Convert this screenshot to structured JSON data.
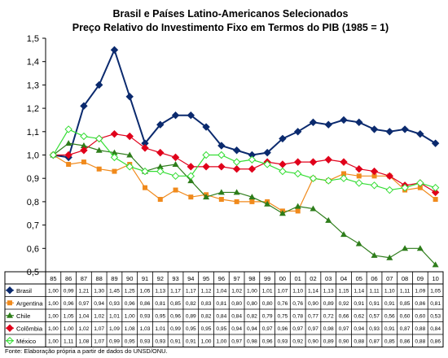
{
  "chart_data": {
    "type": "line",
    "title": "Brasil e Países Latino-Americanos Selecionados",
    "subtitle": "Preço Relativo do Investimento Fixo em Termos do PIB (1985 = 1)",
    "xlabel": "",
    "ylabel": "",
    "ylim": [
      0.5,
      1.5
    ],
    "yticks": [
      "0,5",
      "0,6",
      "0,7",
      "0,8",
      "0,9",
      "1,0",
      "1,1",
      "1,2",
      "1,3",
      "1,4",
      "1,5"
    ],
    "grid": false,
    "categories": [
      "85",
      "86",
      "87",
      "88",
      "89",
      "90",
      "91",
      "92",
      "93",
      "94",
      "95",
      "96",
      "97",
      "98",
      "99",
      "00",
      "01",
      "02",
      "03",
      "04",
      "05",
      "06",
      "07",
      "08",
      "09",
      "10"
    ],
    "series": [
      {
        "name": "Brasil",
        "color": "#0b2a6e",
        "marker": "diamond",
        "values": [
          1.0,
          0.99,
          1.21,
          1.3,
          1.45,
          1.25,
          1.05,
          1.13,
          1.17,
          1.17,
          1.12,
          1.04,
          1.02,
          1.0,
          1.01,
          1.07,
          1.1,
          1.14,
          1.13,
          1.15,
          1.14,
          1.11,
          1.1,
          1.11,
          1.09,
          1.05
        ],
        "labels": [
          "1,00",
          "0,99",
          "1,21",
          "1,30",
          "1,45",
          "1,25",
          "1,05",
          "1,13",
          "1,17",
          "1,17",
          "1,12",
          "1,04",
          "1,02",
          "1,00",
          "1,01",
          "1,07",
          "1,10",
          "1,14",
          "1,13",
          "1,15",
          "1,14",
          "1,11",
          "1,10",
          "1,11",
          "1,09",
          "1,05"
        ]
      },
      {
        "name": "Argentina",
        "color": "#f08a1c",
        "marker": "square",
        "values": [
          1.0,
          0.96,
          0.97,
          0.94,
          0.93,
          0.96,
          0.86,
          0.81,
          0.85,
          0.82,
          0.83,
          0.81,
          0.8,
          0.8,
          0.8,
          0.76,
          0.76,
          0.9,
          0.89,
          0.92,
          0.91,
          0.91,
          0.91,
          0.85,
          0.86,
          0.81
        ],
        "labels": [
          "1,00",
          "0,96",
          "0,97",
          "0,94",
          "0,93",
          "0,96",
          "0,86",
          "0,81",
          "0,85",
          "0,82",
          "0,83",
          "0,81",
          "0,80",
          "0,80",
          "0,80",
          "0,76",
          "0,76",
          "0,90",
          "0,89",
          "0,92",
          "0,91",
          "0,91",
          "0,91",
          "0,85",
          "0,86",
          "0,81"
        ]
      },
      {
        "name": "Chile",
        "color": "#2e7d1b",
        "marker": "triangle",
        "values": [
          1.0,
          1.05,
          1.04,
          1.02,
          1.01,
          1.0,
          0.93,
          0.95,
          0.96,
          0.89,
          0.82,
          0.84,
          0.84,
          0.82,
          0.79,
          0.75,
          0.78,
          0.77,
          0.72,
          0.66,
          0.62,
          0.57,
          0.56,
          0.6,
          0.6,
          0.53
        ],
        "labels": [
          "1,00",
          "1,05",
          "1,04",
          "1,02",
          "1,01",
          "1,00",
          "0,93",
          "0,95",
          "0,96",
          "0,89",
          "0,82",
          "0,84",
          "0,84",
          "0,82",
          "0,79",
          "0,75",
          "0,78",
          "0,77",
          "0,72",
          "0,66",
          "0,62",
          "0,57",
          "0,56",
          "0,60",
          "0,60",
          "0,53"
        ]
      },
      {
        "name": "Colômbia",
        "color": "#e0001b",
        "marker": "diamond",
        "values": [
          1.0,
          1.0,
          1.02,
          1.07,
          1.09,
          1.08,
          1.03,
          1.01,
          0.99,
          0.95,
          0.95,
          0.95,
          0.94,
          0.94,
          0.97,
          0.96,
          0.97,
          0.97,
          0.98,
          0.97,
          0.94,
          0.93,
          0.91,
          0.87,
          0.88,
          0.84
        ],
        "labels": [
          "1,00",
          "1,00",
          "1,02",
          "1,07",
          "1,09",
          "1,08",
          "1,03",
          "1,01",
          "0,99",
          "0,95",
          "0,95",
          "0,95",
          "0,94",
          "0,94",
          "0,97",
          "0,96",
          "0,97",
          "0,97",
          "0,98",
          "0,97",
          "0,94",
          "0,93",
          "0,91",
          "0,87",
          "0,88",
          "0,84"
        ]
      },
      {
        "name": "México",
        "color": "#33dd33",
        "marker": "diamond-open",
        "values": [
          1.0,
          1.11,
          1.08,
          1.07,
          0.99,
          0.95,
          0.93,
          0.93,
          0.91,
          0.91,
          1.0,
          1.0,
          0.97,
          0.98,
          0.96,
          0.93,
          0.92,
          0.9,
          0.89,
          0.9,
          0.88,
          0.87,
          0.85,
          0.86,
          0.88,
          0.86
        ],
        "labels": [
          "1,00",
          "1,11",
          "1,08",
          "1,07",
          "0,99",
          "0,95",
          "0,93",
          "0,93",
          "0,91",
          "0,91",
          "1,00",
          "1,00",
          "0,97",
          "0,98",
          "0,96",
          "0,93",
          "0,92",
          "0,90",
          "0,89",
          "0,90",
          "0,88",
          "0,87",
          "0,85",
          "0,86",
          "0,88",
          "0,86"
        ]
      }
    ]
  },
  "source": "Fonte: Elaboração própria a partir de dados do UNSD/ONU."
}
